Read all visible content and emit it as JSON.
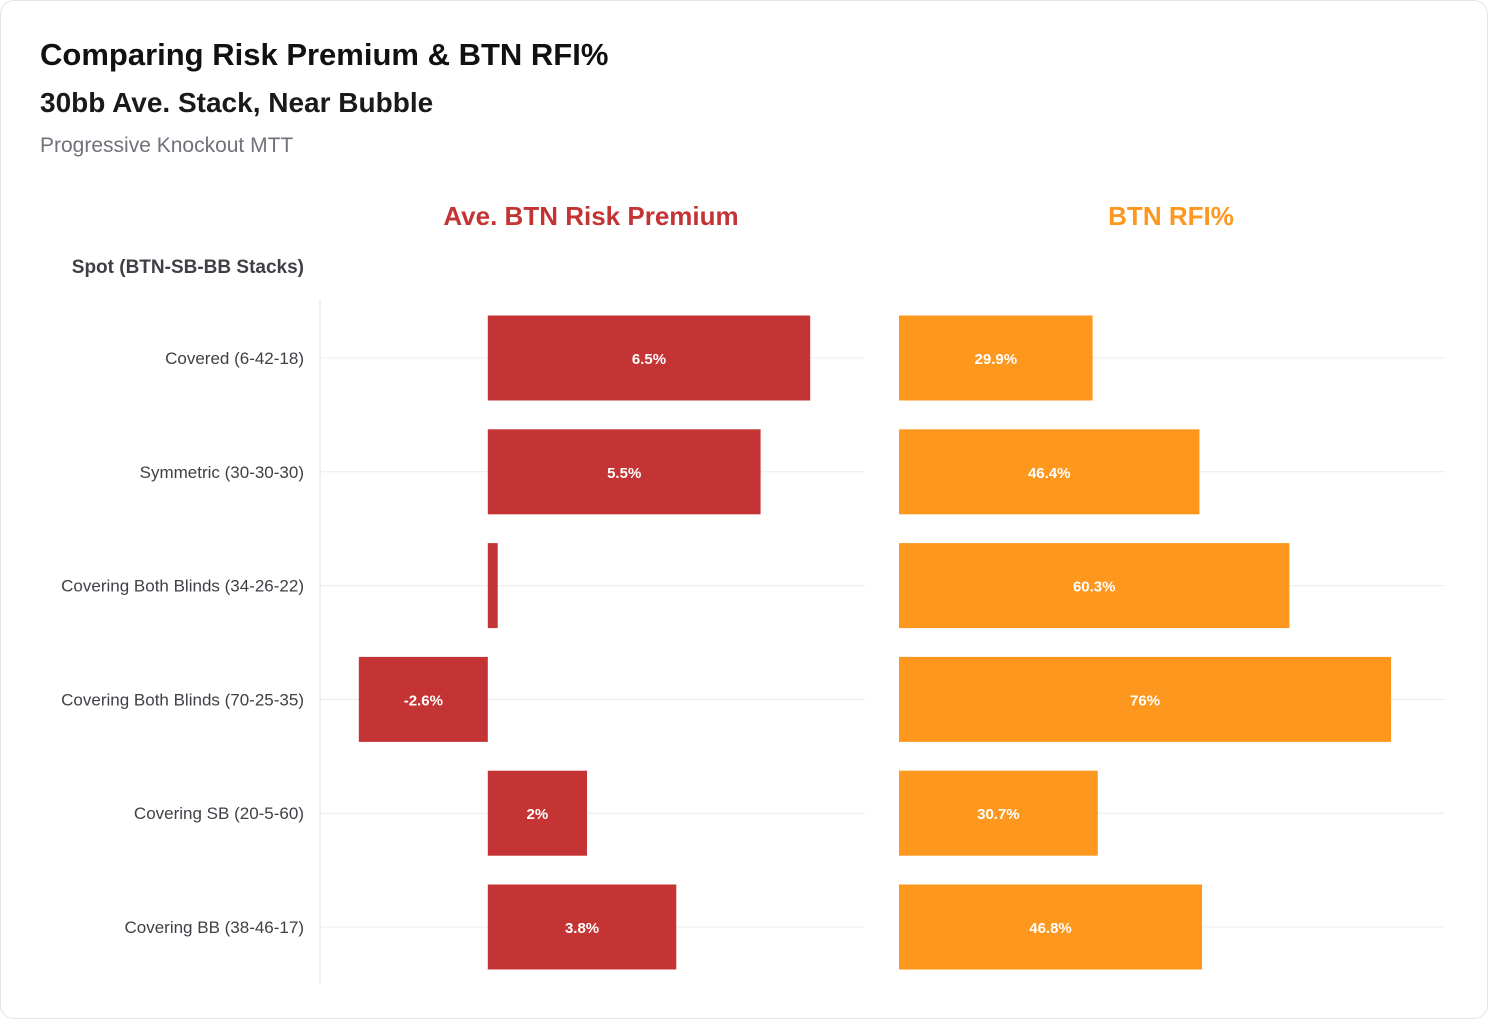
{
  "header": {
    "title": "Comparing Risk Premium & BTN RFI%",
    "subtitle": "30bb Ave. Stack, Near Bubble",
    "caption": "Progressive Knockout MTT"
  },
  "chart_data": {
    "type": "bar",
    "orientation": "horizontal",
    "category_axis_title": "Spot (BTN-SB-BB Stacks)",
    "categories": [
      "Covered (6-42-18)",
      "Symmetric (30-30-30)",
      "Covering Both Blinds (34-26-22)",
      "Covering Both Blinds (70-25-35)",
      "Covering SB (20-5-60)",
      "Covering BB (38-46-17)"
    ],
    "series": [
      {
        "name": "Ave. BTN Risk Premium",
        "color": "#c53434",
        "values": [
          6.5,
          5.5,
          0.2,
          -2.6,
          2,
          3.8
        ],
        "labels": [
          "6.5%",
          "5.5%",
          "",
          "-2.6%",
          "2%",
          "3.8%"
        ],
        "xlim": [
          -3,
          7
        ]
      },
      {
        "name": "BTN RFI%",
        "color": "#fd971e",
        "values": [
          29.9,
          46.4,
          60.3,
          76,
          30.7,
          46.8
        ],
        "labels": [
          "29.9%",
          "46.4%",
          "60.3%",
          "76%",
          "30.7%",
          "46.8%"
        ],
        "xlim": [
          0,
          80
        ]
      }
    ],
    "grid": true,
    "legend": "none"
  }
}
